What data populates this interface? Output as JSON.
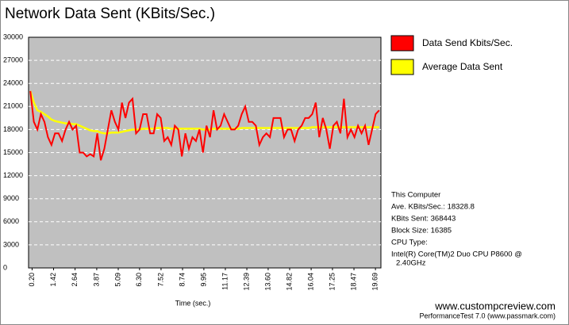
{
  "chart_data": {
    "type": "line",
    "title": "Network Data Sent (KBits/Sec.)",
    "x_label": "Time (sec.)",
    "x": [
      0.1,
      0.3,
      0.5,
      0.7,
      0.9,
      1.1,
      1.3,
      1.5,
      1.7,
      1.9,
      2.1,
      2.3,
      2.5,
      2.7,
      2.9,
      3.1,
      3.3,
      3.5,
      3.7,
      3.9,
      4.1,
      4.3,
      4.5,
      4.7,
      4.9,
      5.1,
      5.3,
      5.5,
      5.7,
      5.9,
      6.1,
      6.3,
      6.5,
      6.7,
      6.9,
      7.1,
      7.3,
      7.5,
      7.7,
      7.9,
      8.1,
      8.3,
      8.5,
      8.7,
      8.9,
      9.1,
      9.3,
      9.5,
      9.7,
      9.9,
      10.1,
      10.3,
      10.5,
      10.7,
      10.9,
      11.1,
      11.3,
      11.5,
      11.7,
      11.9,
      12.1,
      12.3,
      12.5,
      12.7,
      12.9,
      13.1,
      13.3,
      13.5,
      13.7,
      13.9,
      14.1,
      14.3,
      14.5,
      14.7,
      14.9,
      15.1,
      15.3,
      15.5,
      15.7,
      15.9,
      16.1,
      16.3,
      16.5,
      16.7,
      16.9,
      17.1,
      17.3,
      17.5,
      17.7,
      17.9,
      18.1,
      18.3,
      18.5,
      18.7,
      18.9,
      19.1,
      19.3,
      19.5,
      19.7,
      19.9
    ],
    "series": [
      {
        "name": "Data Send Kbits/Sec.",
        "color": "#ff0000",
        "values": [
          23000,
          19000,
          18000,
          20000,
          19000,
          17000,
          16000,
          17500,
          17500,
          16500,
          18000,
          19000,
          18000,
          18500,
          15000,
          15000,
          14500,
          14800,
          14500,
          17500,
          14000,
          15500,
          18000,
          20500,
          19000,
          18000,
          21500,
          19500,
          21500,
          22000,
          17500,
          18000,
          20000,
          20000,
          17500,
          17500,
          20000,
          19500,
          16500,
          17000,
          16000,
          18500,
          18000,
          14500,
          17500,
          15500,
          17000,
          16500,
          18000,
          15000,
          18500,
          17000,
          20500,
          18000,
          18500,
          20000,
          19000,
          18000,
          18000,
          18500,
          20000,
          21000,
          19000,
          19000,
          18500,
          16000,
          17000,
          17500,
          17000,
          19500,
          19500,
          19500,
          17000,
          18000,
          18000,
          16500,
          18000,
          18500,
          19500,
          19500,
          20000,
          21500,
          17000,
          19500,
          18000,
          15500,
          18500,
          19000,
          17500,
          22000,
          17000,
          18000,
          17000,
          18500,
          17500,
          18500,
          16000,
          18000,
          20000,
          20500
        ]
      },
      {
        "name": "Average Data Sent",
        "color": "#ffff00",
        "values": [
          23000,
          21500,
          20500,
          20300,
          20000,
          19700,
          19300,
          19100,
          19000,
          18900,
          18800,
          18800,
          18700,
          18700,
          18500,
          18300,
          18100,
          17900,
          17800,
          17800,
          17600,
          17500,
          17500,
          17600,
          17600,
          17600,
          17700,
          17800,
          17900,
          18000,
          18000,
          18000,
          18100,
          18100,
          18100,
          18100,
          18200,
          18200,
          18200,
          18200,
          18100,
          18100,
          18100,
          18100,
          18100,
          18100,
          18100,
          18100,
          18100,
          18000,
          18000,
          18000,
          18100,
          18100,
          18100,
          18100,
          18100,
          18100,
          18100,
          18100,
          18200,
          18200,
          18200,
          18200,
          18200,
          18200,
          18200,
          18200,
          18200,
          18200,
          18200,
          18200,
          18200,
          18200,
          18200,
          18200,
          18200,
          18200,
          18200,
          18200,
          18300,
          18300,
          18300,
          18300,
          18300,
          18300,
          18300,
          18300,
          18300,
          18300,
          18300,
          18300,
          18300,
          18300,
          18300,
          18300,
          18300,
          18300,
          18300,
          18300
        ]
      }
    ],
    "xlim": [
      0,
      20
    ],
    "ylim": [
      0,
      30000
    ],
    "xticks": [
      {
        "value": 0.2,
        "label": "0.20"
      },
      1.42,
      2.64,
      3.87,
      5.09,
      {
        "value": 6.3,
        "label": "6.30"
      },
      7.52,
      8.74,
      9.95,
      11.17,
      12.39,
      {
        "value": 13.6,
        "label": "13.60"
      },
      14.82,
      16.04,
      17.25,
      18.47,
      19.69
    ],
    "yticks": [
      0,
      3000,
      6000,
      9000,
      12000,
      15000,
      18000,
      21000,
      24000,
      27000,
      30000
    ],
    "grid": true,
    "info": [
      "This Computer",
      "Ave. KBits/Sec.: 18328.8",
      "KBits Sent: 368443",
      "Block Size: 16385",
      "CPU Type:",
      "Intel(R) Core(TM)2 Duo CPU P8600 @",
      "2.40GHz"
    ],
    "footer": [
      "www.custompcreview.com",
      "PerformanceTest 7.0 (www.passmark.com)"
    ]
  }
}
